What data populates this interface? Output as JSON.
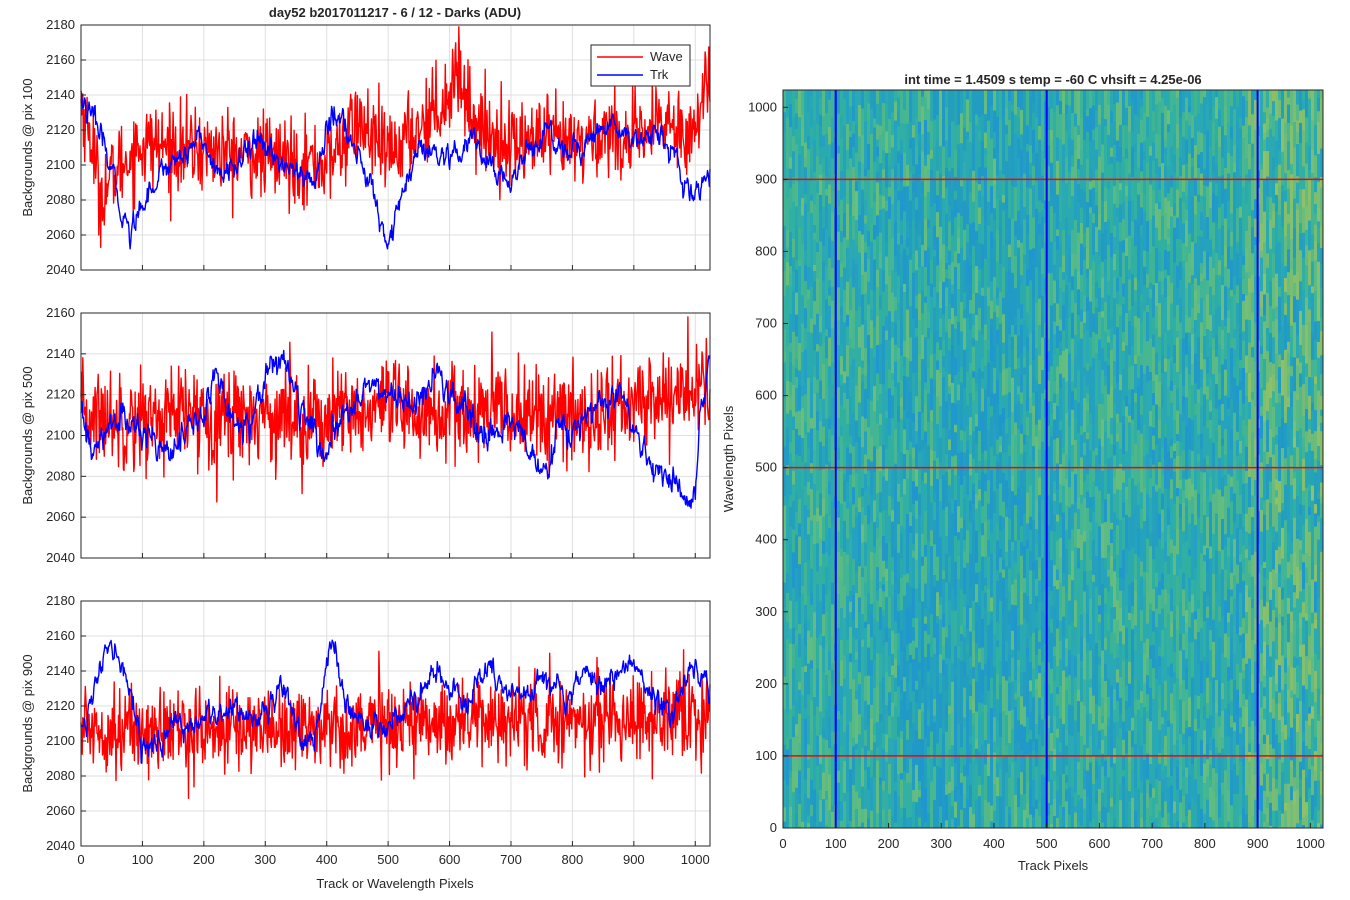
{
  "figure": {
    "background": "#ffffff",
    "line_colors": {
      "wave": "#ff0000",
      "trk": "#0000ff"
    }
  },
  "chart_data": [
    {
      "type": "line",
      "title": "day52 b2017011217 - 6 / 12 - Darks (ADU)",
      "xlabel": "",
      "ylabel": "Backgrounds @ pix 100",
      "xlim": [
        0,
        1024
      ],
      "ylim": [
        2040,
        2180
      ],
      "xticks": [
        0,
        100,
        200,
        300,
        400,
        500,
        600,
        700,
        800,
        900,
        1000
      ],
      "xtick_labels_visible": false,
      "yticks": [
        2040,
        2060,
        2080,
        2100,
        2120,
        2140,
        2160,
        2180
      ],
      "grid": true,
      "legend": {
        "position": "top-right",
        "entries": [
          "Wave",
          "Trk"
        ]
      },
      "series": [
        {
          "name": "Wave",
          "color": "#ff0000",
          "mean": 2110,
          "noise_std": 12,
          "x": [
            0,
            20,
            30,
            60,
            100,
            200,
            300,
            400,
            450,
            500,
            600,
            610,
            640,
            660,
            700,
            750,
            800,
            860,
            900,
            950,
            1000,
            1020
          ],
          "values": [
            2135,
            2110,
            2082,
            2098,
            2112,
            2108,
            2105,
            2100,
            2125,
            2105,
            2140,
            2158,
            2125,
            2118,
            2112,
            2115,
            2110,
            2120,
            2112,
            2125,
            2118,
            2150
          ]
        },
        {
          "name": "Trk",
          "color": "#0000ff",
          "noise_std": 3,
          "x": [
            0,
            10,
            30,
            50,
            70,
            80,
            100,
            140,
            180,
            190,
            220,
            240,
            270,
            300,
            350,
            380,
            400,
            420,
            450,
            480,
            500,
            520,
            550,
            580,
            600,
            640,
            660,
            700,
            720,
            760,
            780,
            820,
            860,
            900,
            940,
            970,
            990,
            1010,
            1024
          ],
          "values": [
            2140,
            2130,
            2120,
            2095,
            2070,
            2060,
            2080,
            2100,
            2110,
            2120,
            2095,
            2095,
            2110,
            2110,
            2095,
            2090,
            2120,
            2130,
            2105,
            2080,
            2055,
            2080,
            2108,
            2105,
            2100,
            2115,
            2100,
            2090,
            2105,
            2120,
            2110,
            2110,
            2125,
            2115,
            2120,
            2100,
            2080,
            2090,
            2092
          ]
        }
      ]
    },
    {
      "type": "line",
      "title": "",
      "xlabel": "",
      "ylabel": "Backgrounds @ pix 500",
      "xlim": [
        0,
        1024
      ],
      "ylim": [
        2040,
        2160
      ],
      "xticks": [
        0,
        100,
        200,
        300,
        400,
        500,
        600,
        700,
        800,
        900,
        1000
      ],
      "xtick_labels_visible": false,
      "yticks": [
        2040,
        2060,
        2080,
        2100,
        2120,
        2140,
        2160
      ],
      "grid": true,
      "series": [
        {
          "name": "Wave",
          "color": "#ff0000",
          "noise_std": 12,
          "x": [
            0,
            100,
            200,
            300,
            400,
            500,
            600,
            700,
            800,
            900,
            1024
          ],
          "values": [
            2110,
            2108,
            2110,
            2110,
            2108,
            2112,
            2110,
            2112,
            2108,
            2115,
            2125
          ]
        },
        {
          "name": "Trk",
          "color": "#0000ff",
          "noise_std": 3,
          "x": [
            0,
            20,
            60,
            100,
            150,
            200,
            220,
            250,
            280,
            300,
            330,
            360,
            400,
            430,
            460,
            500,
            550,
            580,
            600,
            640,
            660,
            680,
            700,
            720,
            740,
            760,
            780,
            800,
            820,
            850,
            880,
            900,
            930,
            950,
            970,
            990,
            1000,
            1010,
            1024
          ],
          "values": [
            2110,
            2090,
            2110,
            2100,
            2095,
            2110,
            2130,
            2105,
            2110,
            2130,
            2140,
            2110,
            2090,
            2110,
            2125,
            2120,
            2115,
            2130,
            2120,
            2105,
            2095,
            2100,
            2110,
            2100,
            2085,
            2080,
            2105,
            2100,
            2110,
            2115,
            2120,
            2100,
            2085,
            2080,
            2075,
            2065,
            2070,
            2110,
            2140
          ]
        }
      ]
    },
    {
      "type": "line",
      "title": "",
      "xlabel": "Track or Wavelength Pixels",
      "ylabel": "Backgrounds @ pix 900",
      "xlim": [
        0,
        1024
      ],
      "ylim": [
        2040,
        2180
      ],
      "xticks": [
        0,
        100,
        200,
        300,
        400,
        500,
        600,
        700,
        800,
        900,
        1000
      ],
      "xtick_labels_visible": true,
      "yticks": [
        2040,
        2060,
        2080,
        2100,
        2120,
        2140,
        2160,
        2180
      ],
      "grid": true,
      "series": [
        {
          "name": "Wave",
          "color": "#ff0000",
          "noise_std": 12,
          "x": [
            0,
            100,
            200,
            300,
            400,
            500,
            600,
            700,
            800,
            900,
            1024
          ],
          "values": [
            2108,
            2106,
            2106,
            2108,
            2108,
            2110,
            2112,
            2112,
            2112,
            2114,
            2112
          ]
        },
        {
          "name": "Trk",
          "color": "#0000ff",
          "noise_std": 3,
          "x": [
            0,
            20,
            40,
            60,
            80,
            100,
            130,
            160,
            200,
            240,
            280,
            300,
            330,
            360,
            380,
            400,
            410,
            430,
            460,
            500,
            530,
            560,
            580,
            600,
            630,
            660,
            680,
            700,
            730,
            760,
            790,
            820,
            850,
            870,
            900,
            930,
            960,
            990,
            1010,
            1024
          ],
          "values": [
            2110,
            2125,
            2150,
            2150,
            2130,
            2095,
            2100,
            2110,
            2110,
            2120,
            2115,
            2115,
            2135,
            2100,
            2100,
            2145,
            2155,
            2120,
            2110,
            2110,
            2120,
            2130,
            2140,
            2130,
            2120,
            2145,
            2130,
            2125,
            2130,
            2140,
            2125,
            2140,
            2130,
            2140,
            2145,
            2125,
            2115,
            2140,
            2145,
            2128
          ]
        }
      ]
    },
    {
      "type": "heatmap",
      "title": "int time = 1.4509 s    temp = -60 C    vhsift = 4.25e-06",
      "xlabel": "Track Pixels",
      "ylabel": "Wavelength Pixels",
      "xlim": [
        0,
        1024
      ],
      "ylim": [
        0,
        1024
      ],
      "xticks": [
        0,
        100,
        200,
        300,
        400,
        500,
        600,
        700,
        800,
        900,
        1000
      ],
      "yticks": [
        0,
        100,
        200,
        300,
        400,
        500,
        600,
        700,
        800,
        900,
        1000
      ],
      "colormap": "parula",
      "base_color": "#2bae9f",
      "horizontal_lines": {
        "color": "#ff0000",
        "values": [
          100,
          500,
          900
        ]
      },
      "vertical_lines": {
        "color": "#0000ff",
        "values": [
          100,
          500,
          900
        ]
      }
    }
  ]
}
